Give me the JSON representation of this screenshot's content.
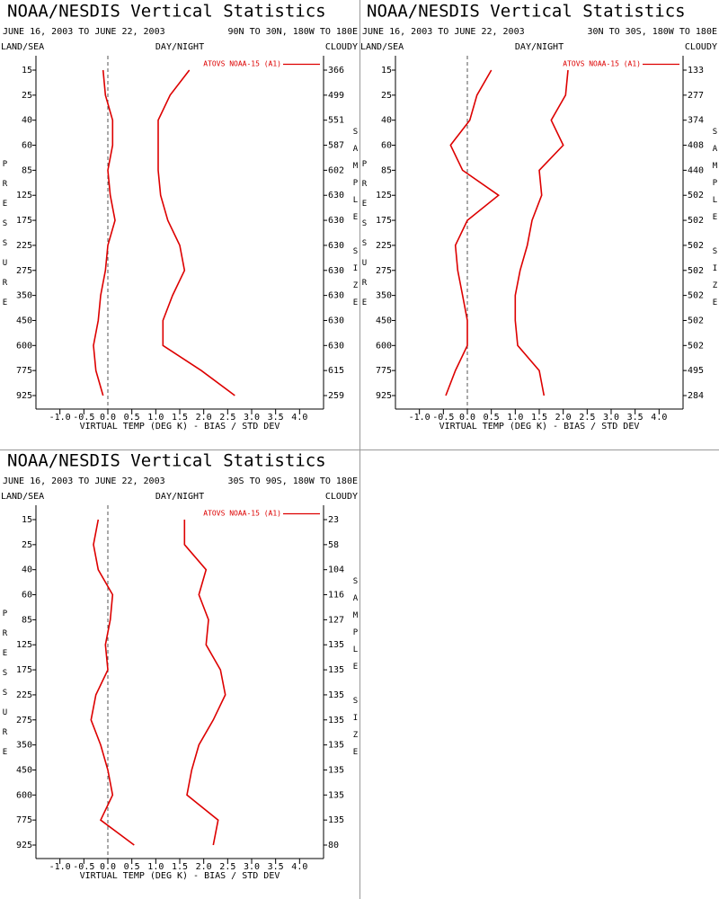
{
  "chart_data": [
    {
      "type": "line",
      "title": "NOAA/NESDIS Vertical Statistics",
      "subtitle": "JUNE 16, 2003 TO JUNE 22, 2003",
      "region": "90N TO 30N, 180W TO 180E",
      "labels": [
        "LAND/SEA",
        "DAY/NIGHT",
        "CLOUDY"
      ],
      "y_label": "PRESSURE",
      "y2_label": "SAMPLE SIZE",
      "x_label": "VIRTUAL TEMP (DEG K) - BIAS / STD DEV",
      "legend": "ATOVS NOAA-15 (A1)",
      "color": "#dd0000",
      "categories": [
        15,
        25,
        40,
        60,
        85,
        125,
        175,
        225,
        275,
        350,
        450,
        600,
        775,
        925
      ],
      "sample_size": [
        366,
        499,
        551,
        587,
        602,
        630,
        630,
        630,
        630,
        630,
        630,
        630,
        615,
        259
      ],
      "series": [
        {
          "values": [
            -0.1,
            -0.05,
            0.1,
            0.1,
            0.0,
            0.05,
            0.15,
            0.0,
            -0.05,
            -0.15,
            -0.2,
            -0.3,
            -0.25,
            -0.1
          ]
        },
        {
          "values": [
            1.7,
            1.3,
            1.05,
            1.05,
            1.05,
            1.1,
            1.25,
            1.5,
            1.6,
            1.35,
            1.15,
            1.15,
            1.95,
            2.65
          ]
        }
      ],
      "xlim": [
        -1.5,
        4.5
      ],
      "xticks": [
        {
          "value": -1,
          "label": "-1.0"
        },
        {
          "value": -0.5,
          "label": "-0.5"
        },
        {
          "value": 0,
          "label": "0.0"
        },
        {
          "value": 0.5,
          "label": "0.5"
        },
        {
          "value": 1,
          "label": "1.0"
        },
        {
          "value": 1.5,
          "label": "1.5"
        },
        {
          "value": 2,
          "label": "2.0"
        },
        {
          "value": 2.5,
          "label": "2.5"
        },
        {
          "value": 3,
          "label": "3.0"
        },
        {
          "value": 3.5,
          "label": "3.5"
        },
        {
          "value": 4,
          "label": "4.0"
        }
      ]
    },
    {
      "type": "line",
      "title": "NOAA/NESDIS Vertical Statistics",
      "subtitle": "JUNE 16, 2003 TO JUNE 22, 2003",
      "region": "30N TO 30S, 180W TO 180E",
      "labels": [
        "LAND/SEA",
        "DAY/NIGHT",
        "CLOUDY"
      ],
      "y_label": "PRESSURE",
      "y2_label": "SAMPLE SIZE",
      "x_label": "VIRTUAL TEMP (DEG K) - BIAS / STD DEV",
      "legend": "ATOVS NOAA-15 (A1)",
      "color": "#dd0000",
      "categories": [
        15,
        25,
        40,
        60,
        85,
        125,
        175,
        225,
        275,
        350,
        450,
        600,
        775,
        925
      ],
      "sample_size": [
        133,
        277,
        374,
        408,
        440,
        502,
        502,
        502,
        502,
        502,
        502,
        502,
        495,
        284
      ],
      "series": [
        {
          "values": [
            0.5,
            0.2,
            0.05,
            -0.35,
            -0.1,
            0.65,
            0.0,
            -0.25,
            -0.2,
            -0.1,
            0.0,
            0.0,
            -0.25,
            -0.45
          ]
        },
        {
          "values": [
            2.1,
            2.05,
            1.75,
            2.0,
            1.5,
            1.55,
            1.35,
            1.25,
            1.1,
            1.0,
            1.0,
            1.05,
            1.5,
            1.6
          ]
        }
      ],
      "xlim": [
        -1.5,
        4.5
      ],
      "xticks": [
        {
          "value": -1,
          "label": "-1.0"
        },
        {
          "value": -0.5,
          "label": "-0.5"
        },
        {
          "value": 0,
          "label": "0.0"
        },
        {
          "value": 0.5,
          "label": "0.5"
        },
        {
          "value": 1,
          "label": "1.0"
        },
        {
          "value": 1.5,
          "label": "1.5"
        },
        {
          "value": 2,
          "label": "2.0"
        },
        {
          "value": 2.5,
          "label": "2.5"
        },
        {
          "value": 3,
          "label": "3.0"
        },
        {
          "value": 3.5,
          "label": "3.5"
        },
        {
          "value": 4,
          "label": "4.0"
        }
      ]
    },
    {
      "type": "line",
      "title": "NOAA/NESDIS Vertical Statistics",
      "subtitle": "JUNE 16, 2003 TO JUNE 22, 2003",
      "region": "30S TO 90S, 180W TO 180E",
      "labels": [
        "LAND/SEA",
        "DAY/NIGHT",
        "CLOUDY"
      ],
      "y_label": "PRESSURE",
      "y2_label": "SAMPLE SIZE",
      "x_label": "VIRTUAL TEMP (DEG K) - BIAS / STD DEV",
      "legend": "ATOVS NOAA-15 (A1)",
      "color": "#dd0000",
      "categories": [
        15,
        25,
        40,
        60,
        85,
        125,
        175,
        225,
        275,
        350,
        450,
        600,
        775,
        925
      ],
      "sample_size": [
        23,
        58,
        104,
        116,
        127,
        135,
        135,
        135,
        135,
        135,
        135,
        135,
        135,
        80
      ],
      "series": [
        {
          "values": [
            -0.2,
            -0.3,
            -0.2,
            0.1,
            0.05,
            -0.05,
            0.0,
            -0.25,
            -0.35,
            -0.15,
            0.0,
            0.1,
            -0.15,
            0.55
          ]
        },
        {
          "values": [
            1.6,
            1.6,
            2.05,
            1.9,
            2.1,
            2.05,
            2.35,
            2.45,
            2.2,
            1.9,
            1.75,
            1.65,
            2.3,
            2.2
          ]
        }
      ],
      "xlim": [
        -1.5,
        4.5
      ],
      "xticks": [
        {
          "value": -1,
          "label": "-1.0"
        },
        {
          "value": -0.5,
          "label": "-0.5"
        },
        {
          "value": 0,
          "label": "0.0"
        },
        {
          "value": 0.5,
          "label": "0.5"
        },
        {
          "value": 1,
          "label": "1.0"
        },
        {
          "value": 1.5,
          "label": "1.5"
        },
        {
          "value": 2,
          "label": "2.0"
        },
        {
          "value": 2.5,
          "label": "2.5"
        },
        {
          "value": 3,
          "label": "3.0"
        },
        {
          "value": 3.5,
          "label": "3.5"
        },
        {
          "value": 4,
          "label": "4.0"
        }
      ]
    }
  ]
}
